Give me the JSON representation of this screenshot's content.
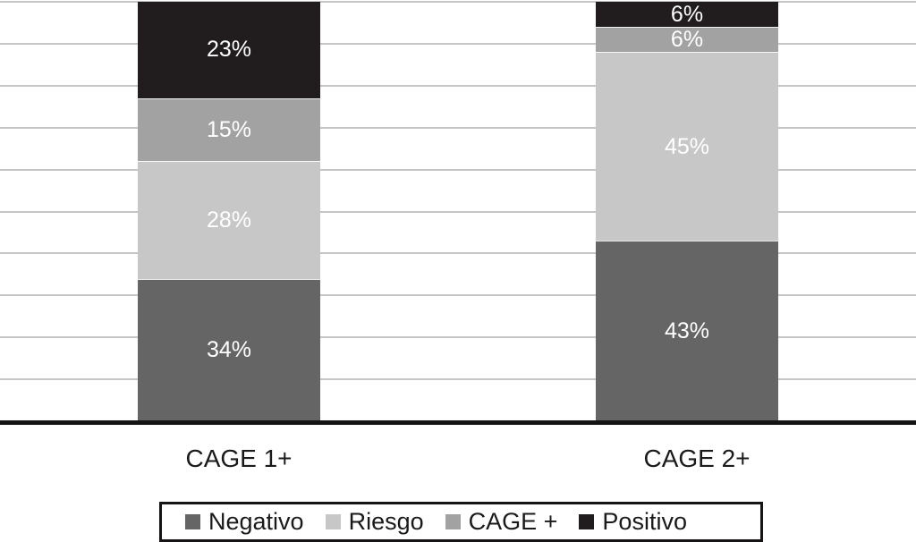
{
  "figure": {
    "background_color": "#ffffff",
    "gridline_color": "#c5c5c5",
    "axis_line_color": "#171415",
    "text_color": "#1a1a1a",
    "value_label_color": "#ffffff",
    "legend_border_color": "#171415"
  },
  "chart_data": {
    "type": "bar",
    "variant": "stacked-column-100",
    "title": "",
    "xlabel": "",
    "ylabel": "",
    "ylim": [
      0,
      100
    ],
    "grid": true,
    "grid_step": 10,
    "unit": "%",
    "categories": [
      "CAGE 1+",
      "CAGE 2+"
    ],
    "series": [
      {
        "name": "Negativo",
        "color": "#656565",
        "values": [
          34,
          43
        ]
      },
      {
        "name": "Riesgo",
        "color": "#c7c7c7",
        "values": [
          28,
          45
        ]
      },
      {
        "name": "CAGE +",
        "color": "#a2a2a2",
        "values": [
          15,
          6
        ]
      },
      {
        "name": "Positivo",
        "color": "#211d1e",
        "values": [
          23,
          6
        ]
      }
    ],
    "data_labels_visible": true,
    "legend": {
      "position": "bottom",
      "entries": [
        "Negativo",
        "Riesgo",
        "CAGE +",
        "Positivo"
      ]
    }
  }
}
